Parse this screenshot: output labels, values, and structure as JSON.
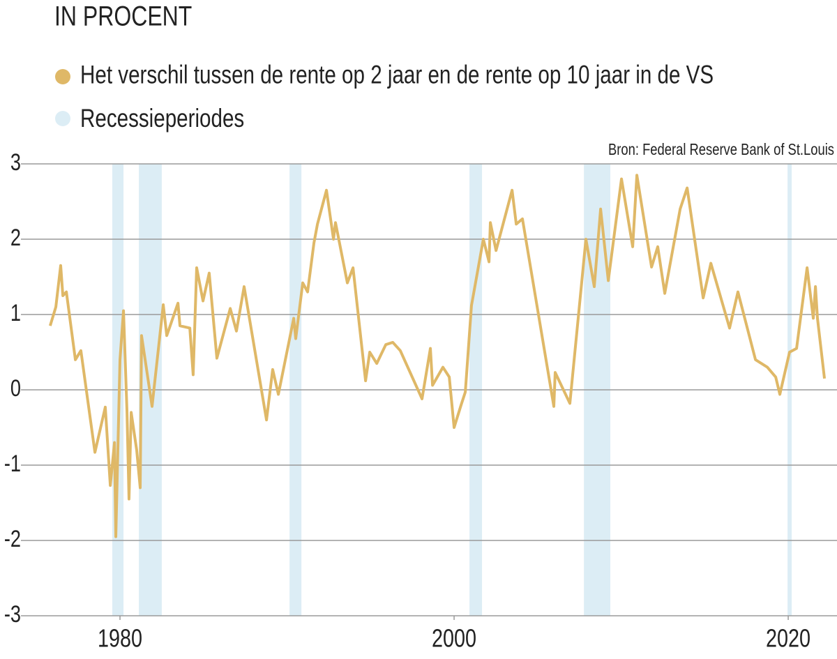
{
  "chart_data": {
    "type": "line",
    "title": "IN PROCENT",
    "source": "Bron: Federal Reserve Bank of St.Louis",
    "x": [
      1975.82,
      1976.16,
      1976.45,
      1976.58,
      1976.79,
      1977.33,
      1977.66,
      1978.5,
      1979.12,
      1979.42,
      1979.67,
      1979.75,
      1980.0,
      1980.21,
      1980.42,
      1980.54,
      1980.67,
      1981.0,
      1981.21,
      1981.29,
      1981.92,
      1982.59,
      1982.8,
      1983.47,
      1983.59,
      1984.18,
      1984.38,
      1984.59,
      1984.97,
      1985.34,
      1985.8,
      1986.6,
      1986.97,
      1987.43,
      1988.77,
      1989.14,
      1989.48,
      1990.4,
      1990.52,
      1990.94,
      1991.23,
      1991.61,
      1991.82,
      1992.36,
      1992.78,
      1992.9,
      1993.61,
      1993.95,
      1994.7,
      1994.95,
      1995.37,
      1995.91,
      1996.33,
      1996.78,
      1998.08,
      1998.58,
      1998.71,
      1999.33,
      1999.71,
      2000.0,
      2000.42,
      2000.67,
      2001.04,
      2001.75,
      2002.09,
      2002.17,
      2002.51,
      2003.47,
      2003.72,
      2004.09,
      2005.97,
      2006.05,
      2006.93,
      2007.89,
      2008.39,
      2008.77,
      2009.23,
      2010.02,
      2010.69,
      2010.94,
      2011.82,
      2012.19,
      2012.61,
      2013.53,
      2013.95,
      2014.91,
      2015.37,
      2016.49,
      2016.99,
      2018.04,
      2018.75,
      2019.25,
      2019.5,
      2020.08,
      2020.5,
      2021.13,
      2021.5,
      2021.63,
      2021.75,
      2022.17
    ],
    "series": [
      {
        "name": "Het verschil tussen de rente op 2 jaar en de rente op 10 jaar in de VS",
        "color": "#dfb867",
        "values": [
          0.85,
          1.1,
          1.65,
          1.25,
          1.3,
          0.4,
          0.52,
          -0.83,
          -0.23,
          -1.27,
          -0.7,
          -1.95,
          0.4,
          1.05,
          -0.3,
          -1.45,
          -0.3,
          -0.8,
          -1.3,
          0.72,
          -0.22,
          1.13,
          0.72,
          1.15,
          0.85,
          0.82,
          0.2,
          1.62,
          1.18,
          1.55,
          0.42,
          1.08,
          0.78,
          1.37,
          -0.4,
          0.27,
          -0.06,
          0.95,
          0.68,
          1.42,
          1.3,
          1.95,
          2.2,
          2.65,
          2.0,
          2.22,
          1.42,
          1.62,
          0.12,
          0.5,
          0.35,
          0.6,
          0.63,
          0.52,
          -0.12,
          0.55,
          0.06,
          0.3,
          0.17,
          -0.5,
          -0.2,
          -0.03,
          1.12,
          2.0,
          1.7,
          2.22,
          1.85,
          2.65,
          2.2,
          2.27,
          -0.22,
          0.23,
          -0.18,
          2.0,
          1.37,
          2.4,
          1.45,
          2.8,
          1.9,
          2.85,
          1.63,
          1.9,
          1.28,
          2.4,
          2.68,
          1.22,
          1.68,
          0.82,
          1.3,
          0.4,
          0.3,
          0.17,
          -0.06,
          0.5,
          0.55,
          1.62,
          0.95,
          1.37,
          0.95,
          0.15
        ]
      }
    ],
    "bands": {
      "name": "Recessieperiodes",
      "color": "#dcedf5",
      "ranges": [
        [
          1979.54,
          1980.21
        ],
        [
          1981.13,
          1982.5
        ],
        [
          1990.15,
          1990.86
        ],
        [
          2000.92,
          2001.67
        ],
        [
          2007.77,
          2009.35
        ],
        [
          2019.96,
          2020.21
        ]
      ]
    },
    "xlim": [
      1974.07,
      2022.92
    ],
    "xticks": [
      1980,
      2000,
      2020
    ],
    "ylim": [
      -3,
      3
    ],
    "yticks": [
      -3,
      -2,
      -1,
      0,
      1,
      2,
      3
    ],
    "grid": true
  }
}
